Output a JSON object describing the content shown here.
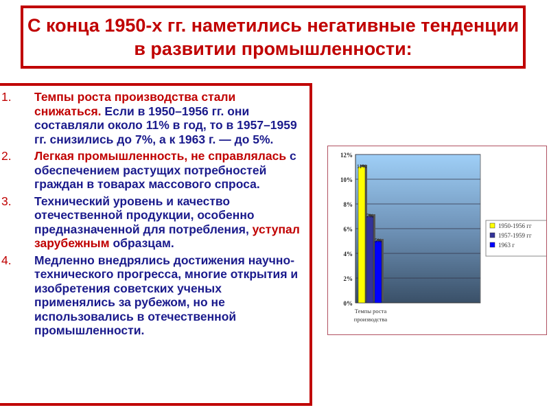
{
  "title": "С конца 1950-х гг. наметились негативные тенденции в развитии промышленности:",
  "items": [
    {
      "num": "1.",
      "red": "Темпы роста производства стали снижаться.",
      "blue": " Если в 1950–1956 гг. они составляли около 11% в год, то в 1957–1959 гг. снизились до 7%, а к 1963 г. — до 5%.",
      "red2": "",
      "blue2": ""
    },
    {
      "num": "2.",
      "red": "Легкая промышленность, не справлялась",
      "blue": " с обеспечением растущих потребностей граждан в товарах массового спроса.",
      "red2": "",
      "blue2": ""
    },
    {
      "num": "3.",
      "red": "",
      "blue": "Технический уровень и качество отечественной продукции, особенно предназначенной для потребления, ",
      "red2": "уступал зарубежным",
      "blue2": " образцам."
    },
    {
      "num": "4.",
      "red": "",
      "blue": "Медленно внедрялись достижения научно-технического прогресса, многие открытия и изобретения советских ученых применялись за рубежом, но не использовались в отечественной промышленности.",
      "red2": "",
      "blue2": ""
    }
  ],
  "chart_data": {
    "type": "bar",
    "categories": [
      "Темпы роста производства"
    ],
    "series": [
      {
        "name": "1950-1956 гг",
        "values": [
          11
        ],
        "color": "#ffff00",
        "label": "11%"
      },
      {
        "name": "1957-1959 гг",
        "values": [
          7
        ],
        "color": "#333399",
        "label": "7%"
      },
      {
        "name": "1963 г",
        "values": [
          5
        ],
        "color": "#0000ff",
        "label": "5%"
      }
    ],
    "ylim": [
      0,
      12
    ],
    "yticks": [
      "0%",
      "2%",
      "4%",
      "6%",
      "8%",
      "10%",
      "12%"
    ],
    "grid": true,
    "legend": "right"
  }
}
